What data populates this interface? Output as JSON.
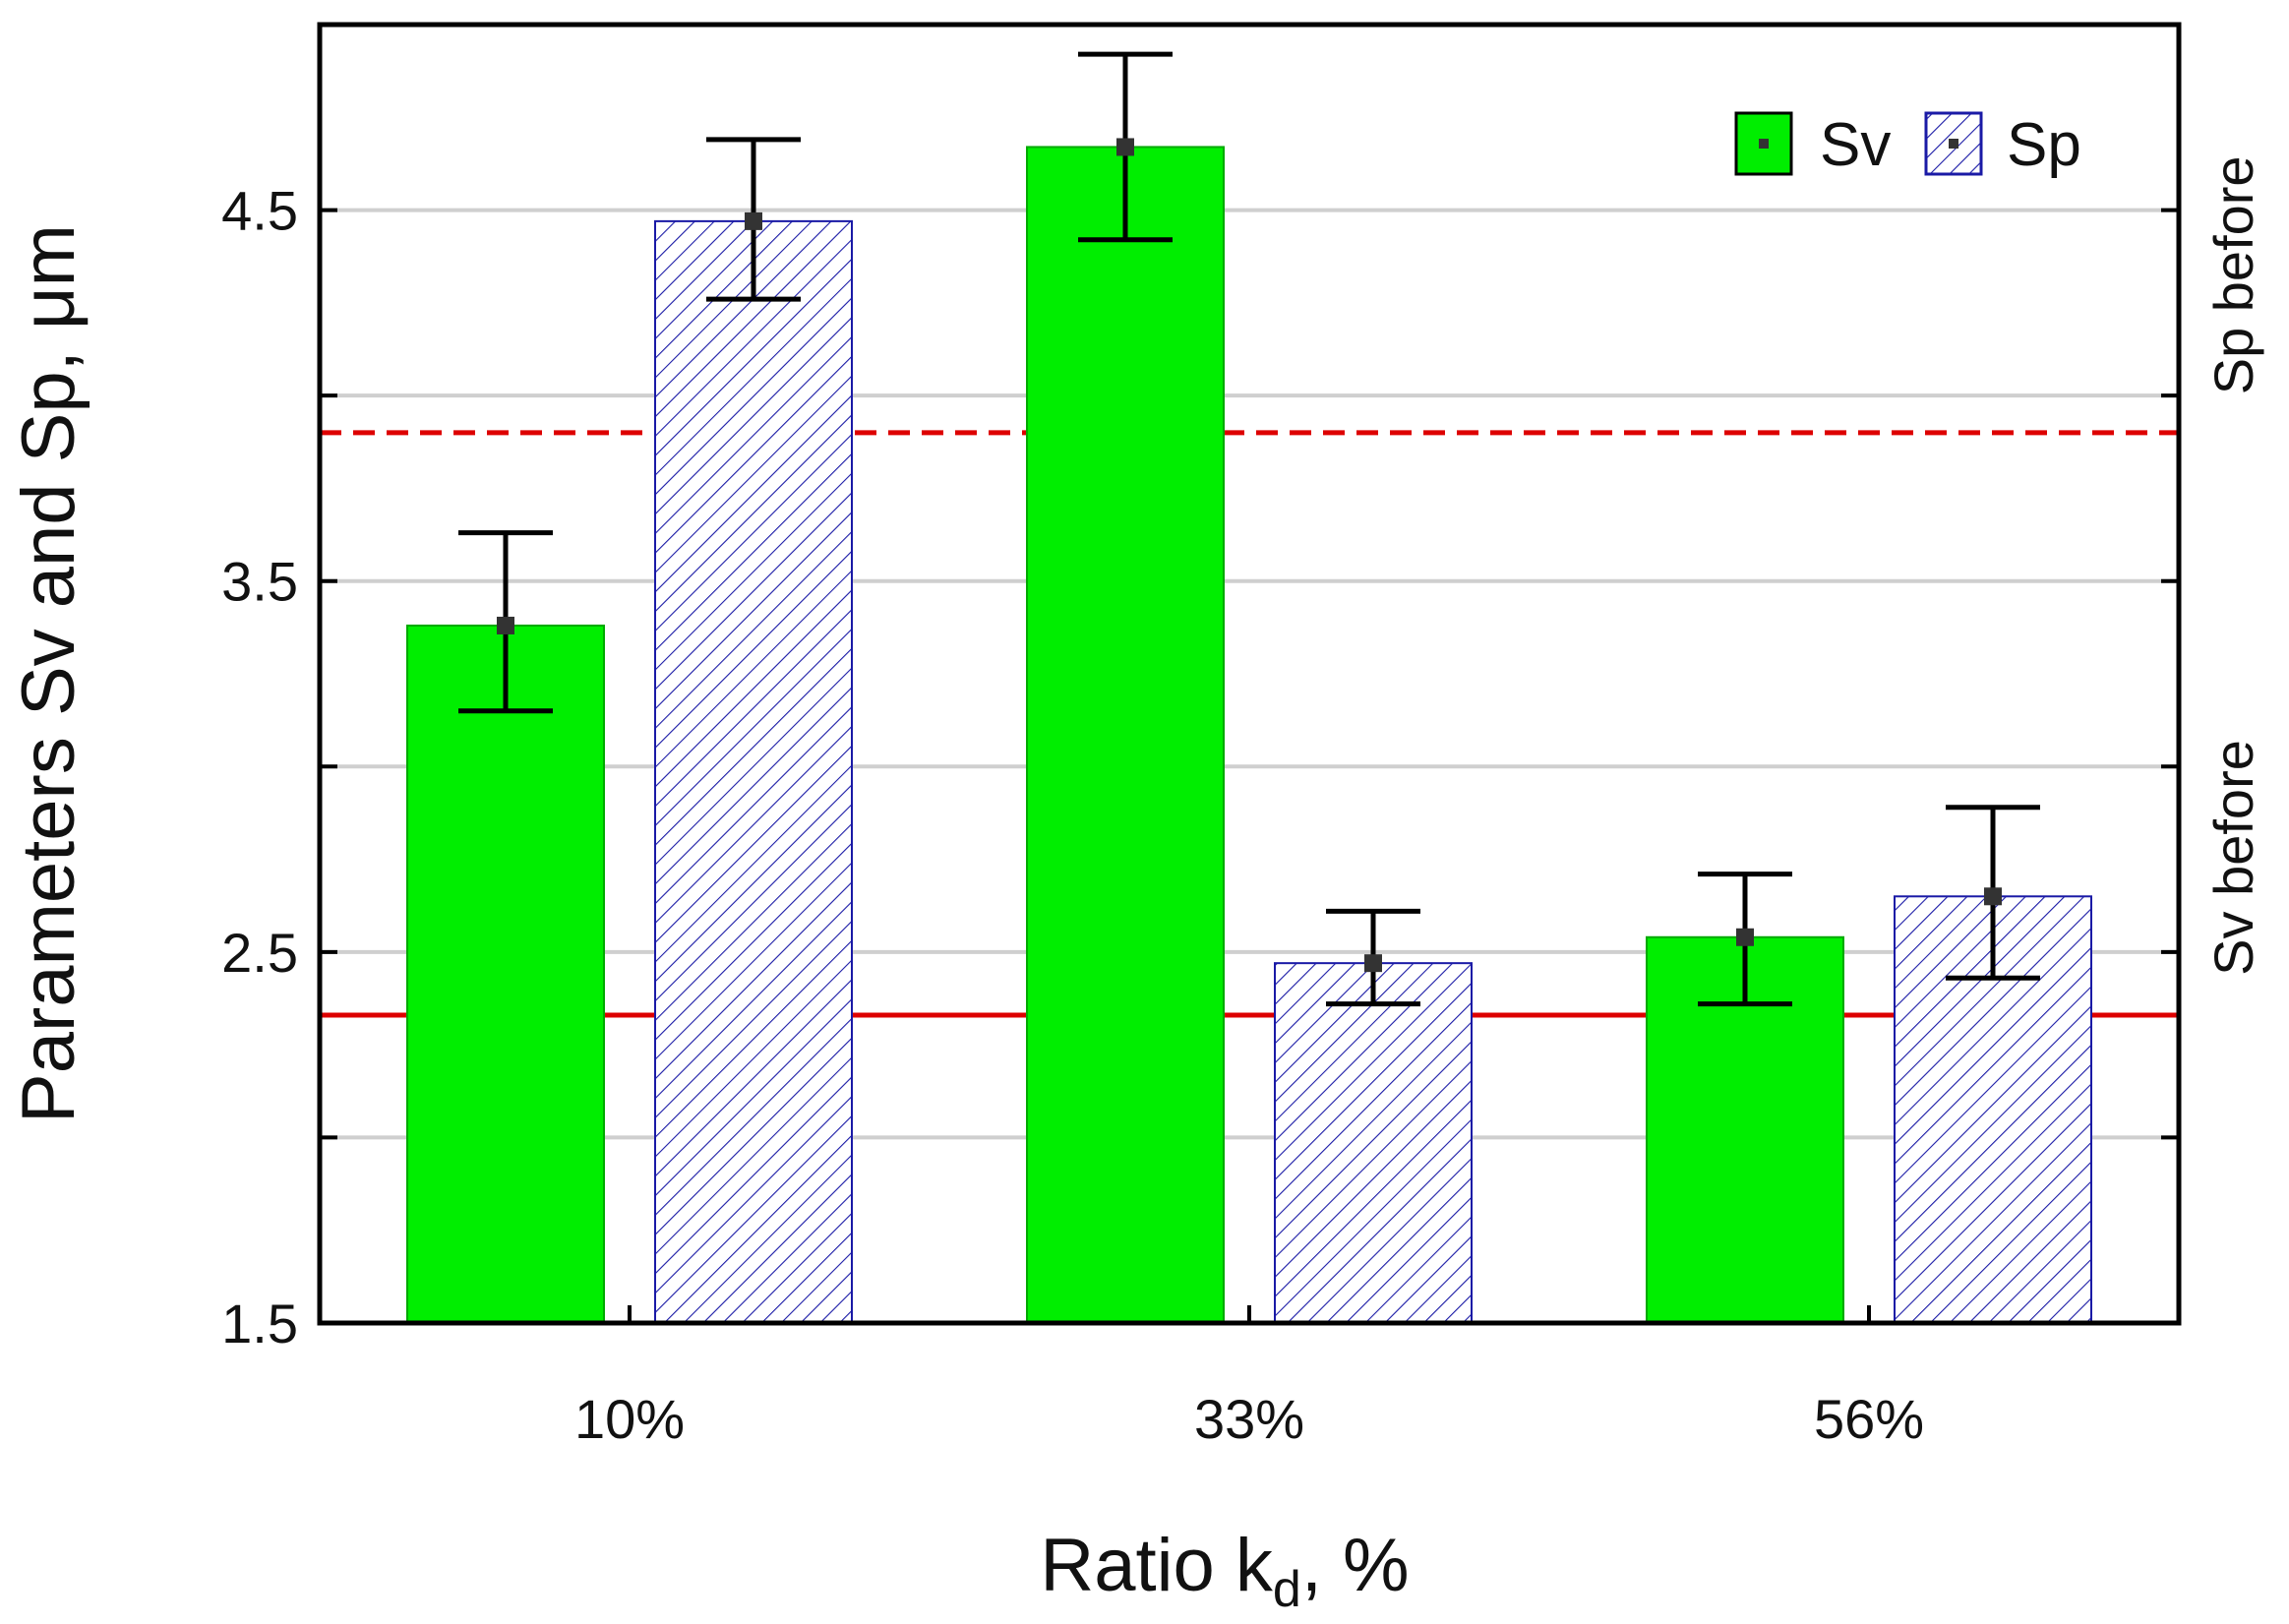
{
  "chart_data": {
    "type": "bar",
    "categories": [
      "10%",
      "33%",
      "56%"
    ],
    "series": [
      {
        "name": "Sv",
        "values": [
          3.38,
          4.67,
          2.54
        ],
        "error_low": [
          3.15,
          4.42,
          2.36
        ],
        "error_high": [
          3.63,
          4.92,
          2.71
        ],
        "color": "#00ee00",
        "pattern": "solid"
      },
      {
        "name": "Sp",
        "values": [
          4.47,
          2.47,
          2.65
        ],
        "error_low": [
          4.26,
          2.36,
          2.43
        ],
        "error_high": [
          4.69,
          2.61,
          2.89
        ],
        "color": "#1a1aa6",
        "pattern": "hatch"
      }
    ],
    "reference_lines": [
      {
        "name": "Sp before",
        "value": 3.9,
        "style": "dashed",
        "color": "#dd0000"
      },
      {
        "name": "Sv before",
        "value": 2.33,
        "style": "solid",
        "color": "#dd0000"
      }
    ],
    "title": "",
    "xlabel_main": "Ratio k",
    "xlabel_sub": "d",
    "xlabel_suffix": ", %",
    "ylabel": "Parameters Sv and Sp, μm",
    "ylim": [
      1.5,
      5.0
    ],
    "yticks": [
      1.5,
      2.0,
      2.5,
      3.0,
      3.5,
      4.0,
      4.5
    ],
    "ytick_labels": [
      "1.5",
      "",
      "2.5",
      "",
      "3.5",
      "",
      "4.5"
    ],
    "grid": true,
    "legend_position": "top-right"
  }
}
